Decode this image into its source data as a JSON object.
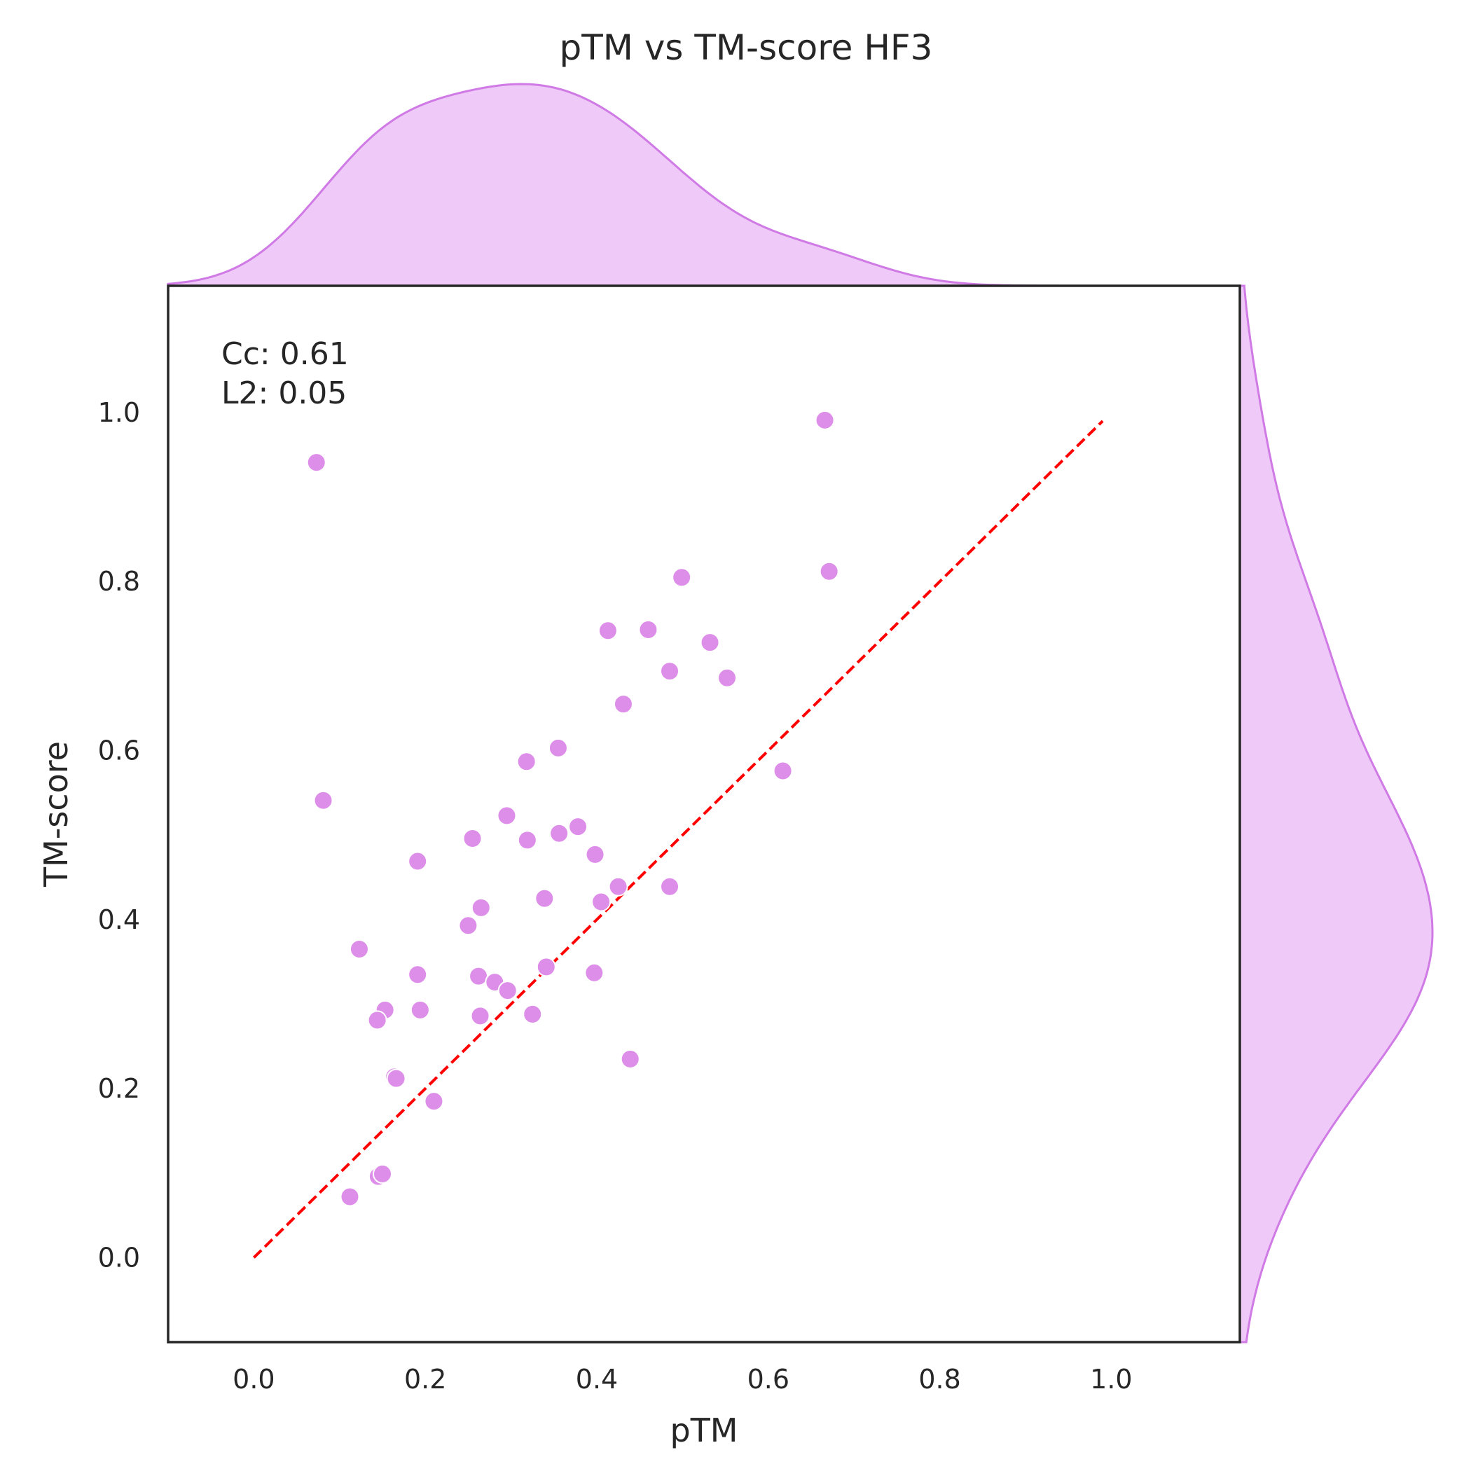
{
  "chart_data": {
    "type": "scatter",
    "title": "pTM vs TM-score HF3",
    "xlabel": "pTM",
    "ylabel": "TM-score",
    "xlim": [
      -0.1,
      1.15
    ],
    "ylim": [
      -0.1,
      1.15
    ],
    "xticks": [
      "0.0",
      "0.2",
      "0.4",
      "0.6",
      "0.8",
      "1.0"
    ],
    "yticks": [
      "0.0",
      "0.2",
      "0.4",
      "0.6",
      "0.8",
      "1.0"
    ],
    "grid": false,
    "stats": [
      "Cc: 0.61",
      "L2: 0.05"
    ],
    "identity_line": {
      "from": [
        0.0,
        0.0
      ],
      "to": [
        0.99,
        0.99
      ],
      "style": "dashed",
      "color": "#ff0000"
    },
    "marginals": "kde",
    "colors": {
      "point": "#dd8ee8",
      "kde_fill": "#efc9f7",
      "kde_line": "#d07ae6"
    },
    "points": [
      [
        0.073,
        0.941
      ],
      [
        0.666,
        0.991
      ],
      [
        0.671,
        0.812
      ],
      [
        0.499,
        0.805
      ],
      [
        0.413,
        0.742
      ],
      [
        0.46,
        0.743
      ],
      [
        0.532,
        0.728
      ],
      [
        0.485,
        0.694
      ],
      [
        0.552,
        0.686
      ],
      [
        0.431,
        0.655
      ],
      [
        0.355,
        0.603
      ],
      [
        0.318,
        0.587
      ],
      [
        0.617,
        0.576
      ],
      [
        0.081,
        0.541
      ],
      [
        0.295,
        0.523
      ],
      [
        0.378,
        0.51
      ],
      [
        0.255,
        0.496
      ],
      [
        0.319,
        0.494
      ],
      [
        0.356,
        0.502
      ],
      [
        0.398,
        0.477
      ],
      [
        0.191,
        0.469
      ],
      [
        0.425,
        0.439
      ],
      [
        0.485,
        0.439
      ],
      [
        0.339,
        0.425
      ],
      [
        0.405,
        0.421
      ],
      [
        0.265,
        0.414
      ],
      [
        0.25,
        0.393
      ],
      [
        0.123,
        0.365
      ],
      [
        0.191,
        0.335
      ],
      [
        0.262,
        0.333
      ],
      [
        0.341,
        0.344
      ],
      [
        0.397,
        0.337
      ],
      [
        0.281,
        0.326
      ],
      [
        0.296,
        0.316
      ],
      [
        0.153,
        0.293
      ],
      [
        0.194,
        0.293
      ],
      [
        0.144,
        0.281
      ],
      [
        0.264,
        0.286
      ],
      [
        0.325,
        0.288
      ],
      [
        0.164,
        0.214
      ],
      [
        0.166,
        0.212
      ],
      [
        0.439,
        0.235
      ],
      [
        0.21,
        0.185
      ],
      [
        0.145,
        0.096
      ],
      [
        0.15,
        0.099
      ],
      [
        0.112,
        0.072
      ]
    ]
  }
}
